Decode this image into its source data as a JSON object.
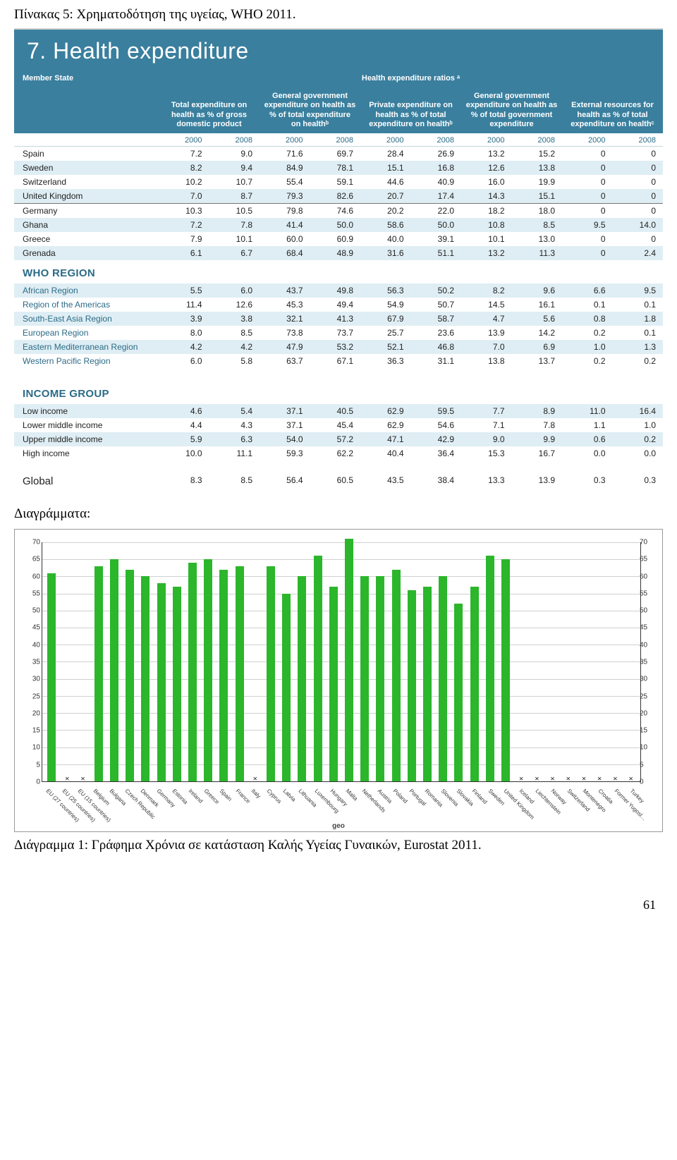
{
  "page_title": "Πίνακας 5: Χρηματοδότηση της υγείας, WHO 2011.",
  "panel_title": "7. Health expenditure",
  "member_state_label": "Member State",
  "overall_header": "Health expenditure ratios ᵃ",
  "column_headers": [
    "Total expenditure on health as % of gross domestic product",
    "General government expenditure on health as % of total expenditure on healthᵇ",
    "Private expenditure on health as % of total expenditure on healthᵇ",
    "General government expenditure on health as % of total government expenditure",
    "External resources for health as % of total expenditure on healthᶜ"
  ],
  "years": [
    "2000",
    "2008",
    "2000",
    "2008",
    "2000",
    "2008",
    "2000",
    "2008",
    "2000",
    "2008"
  ],
  "countries": [
    {
      "name": "Spain",
      "alt": false,
      "vals": [
        "7.2",
        "9.0",
        "71.6",
        "69.7",
        "28.4",
        "26.9",
        "13.2",
        "15.2",
        "0",
        "0"
      ]
    },
    {
      "name": "Sweden",
      "alt": true,
      "vals": [
        "8.2",
        "9.4",
        "84.9",
        "78.1",
        "15.1",
        "16.8",
        "12.6",
        "13.8",
        "0",
        "0"
      ]
    },
    {
      "name": "Switzerland",
      "alt": false,
      "vals": [
        "10.2",
        "10.7",
        "55.4",
        "59.1",
        "44.6",
        "40.9",
        "16.0",
        "19.9",
        "0",
        "0"
      ]
    },
    {
      "name": "United Kingdom",
      "alt": true,
      "line": true,
      "vals": [
        "7.0",
        "8.7",
        "79.3",
        "82.6",
        "20.7",
        "17.4",
        "14.3",
        "15.1",
        "0",
        "0"
      ]
    },
    {
      "name": "Germany",
      "alt": false,
      "vals": [
        "10.3",
        "10.5",
        "79.8",
        "74.6",
        "20.2",
        "22.0",
        "18.2",
        "18.0",
        "0",
        "0"
      ]
    },
    {
      "name": "Ghana",
      "alt": true,
      "vals": [
        "7.2",
        "7.8",
        "41.4",
        "50.0",
        "58.6",
        "50.0",
        "10.8",
        "8.5",
        "9.5",
        "14.0"
      ]
    },
    {
      "name": "Greece",
      "alt": false,
      "vals": [
        "7.9",
        "10.1",
        "60.0",
        "60.9",
        "40.0",
        "39.1",
        "10.1",
        "13.0",
        "0",
        "0"
      ]
    },
    {
      "name": "Grenada",
      "alt": true,
      "vals": [
        "6.1",
        "6.7",
        "68.4",
        "48.9",
        "31.6",
        "51.1",
        "13.2",
        "11.3",
        "0",
        "2.4"
      ]
    }
  ],
  "region_title": "WHO REGION",
  "regions": [
    {
      "name": "African Region",
      "alt": true,
      "vals": [
        "5.5",
        "6.0",
        "43.7",
        "49.8",
        "56.3",
        "50.2",
        "8.2",
        "9.6",
        "6.6",
        "9.5"
      ]
    },
    {
      "name": "Region of the Americas",
      "alt": false,
      "vals": [
        "11.4",
        "12.6",
        "45.3",
        "49.4",
        "54.9",
        "50.7",
        "14.5",
        "16.1",
        "0.1",
        "0.1"
      ]
    },
    {
      "name": "South-East Asia Region",
      "alt": true,
      "vals": [
        "3.9",
        "3.8",
        "32.1",
        "41.3",
        "67.9",
        "58.7",
        "4.7",
        "5.6",
        "0.8",
        "1.8"
      ]
    },
    {
      "name": "European Region",
      "alt": false,
      "vals": [
        "8.0",
        "8.5",
        "73.8",
        "73.7",
        "25.7",
        "23.6",
        "13.9",
        "14.2",
        "0.2",
        "0.1"
      ]
    },
    {
      "name": "Eastern Mediterranean Region",
      "alt": true,
      "vals": [
        "4.2",
        "4.2",
        "47.9",
        "53.2",
        "52.1",
        "46.8",
        "7.0",
        "6.9",
        "1.0",
        "1.3"
      ]
    },
    {
      "name": "Western Pacific Region",
      "alt": false,
      "vals": [
        "6.0",
        "5.8",
        "63.7",
        "67.1",
        "36.3",
        "31.1",
        "13.8",
        "13.7",
        "0.2",
        "0.2"
      ]
    }
  ],
  "income_title": "INCOME GROUP",
  "income_groups": [
    {
      "name": "Low income",
      "alt": true,
      "vals": [
        "4.6",
        "5.4",
        "37.1",
        "40.5",
        "62.9",
        "59.5",
        "7.7",
        "8.9",
        "11.0",
        "16.4"
      ]
    },
    {
      "name": "Lower middle income",
      "alt": false,
      "vals": [
        "4.4",
        "4.3",
        "37.1",
        "45.4",
        "62.9",
        "54.6",
        "7.1",
        "7.8",
        "1.1",
        "1.0"
      ]
    },
    {
      "name": "Upper middle income",
      "alt": true,
      "vals": [
        "5.9",
        "6.3",
        "54.0",
        "57.2",
        "47.1",
        "42.9",
        "9.0",
        "9.9",
        "0.6",
        "0.2"
      ]
    },
    {
      "name": "High income",
      "alt": false,
      "vals": [
        "10.0",
        "11.1",
        "59.3",
        "62.2",
        "40.4",
        "36.4",
        "15.3",
        "16.7",
        "0.0",
        "0.0"
      ]
    }
  ],
  "global_row": {
    "name": "Global",
    "vals": [
      "8.3",
      "8.5",
      "56.4",
      "60.5",
      "43.5",
      "38.4",
      "13.3",
      "13.9",
      "0.3",
      "0.3"
    ]
  },
  "diagrams_label": "Διαγράμματα:",
  "chart": {
    "y_max": 70,
    "y_ticks": [
      0,
      5,
      10,
      15,
      20,
      25,
      30,
      35,
      40,
      45,
      50,
      55,
      60,
      65,
      70
    ],
    "bar_color": "#2bb62b",
    "x_axis_label": "geo",
    "series": [
      {
        "label": "EU (27 countries)",
        "value": 61
      },
      {
        "label": "EU (25 countries)",
        "value": null
      },
      {
        "label": "EU (15 countries)",
        "value": null
      },
      {
        "label": "Belgium",
        "value": 63
      },
      {
        "label": "Bulgaria",
        "value": 65
      },
      {
        "label": "Czech Republic",
        "value": 62
      },
      {
        "label": "Denmark",
        "value": 60
      },
      {
        "label": "Germany",
        "value": 58
      },
      {
        "label": "Estonia",
        "value": 57
      },
      {
        "label": "Ireland",
        "value": 64
      },
      {
        "label": "Greece",
        "value": 65
      },
      {
        "label": "Spain",
        "value": 62
      },
      {
        "label": "France",
        "value": 63
      },
      {
        "label": "Italy",
        "value": null
      },
      {
        "label": "Cyprus",
        "value": 63
      },
      {
        "label": "Latvia",
        "value": 55
      },
      {
        "label": "Lithuania",
        "value": 60
      },
      {
        "label": "Luxembourg",
        "value": 66
      },
      {
        "label": "Hungary",
        "value": 57
      },
      {
        "label": "Malta",
        "value": 71
      },
      {
        "label": "Netherlands",
        "value": 60
      },
      {
        "label": "Austria",
        "value": 60
      },
      {
        "label": "Poland",
        "value": 62
      },
      {
        "label": "Portugal",
        "value": 56
      },
      {
        "label": "Romania",
        "value": 57
      },
      {
        "label": "Slovenia",
        "value": 60
      },
      {
        "label": "Slovakia",
        "value": 52
      },
      {
        "label": "Finland",
        "value": 57
      },
      {
        "label": "Sweden",
        "value": 66
      },
      {
        "label": "United Kingdom",
        "value": 65
      },
      {
        "label": "Iceland",
        "value": null
      },
      {
        "label": "Liechtenstein",
        "value": null
      },
      {
        "label": "Norway",
        "value": null
      },
      {
        "label": "Switzerland",
        "value": null
      },
      {
        "label": "Montenegro",
        "value": null
      },
      {
        "label": "Croatia",
        "value": null
      },
      {
        "label": "Former Yugosl…",
        "value": null
      },
      {
        "label": "Turkey",
        "value": null
      }
    ]
  },
  "chart_caption": "Διάγραμμα 1: Γράφημα Χρόνια σε κατάσταση Καλής Υγείας Γυναικών, Eurostat 2011.",
  "page_number": "61"
}
